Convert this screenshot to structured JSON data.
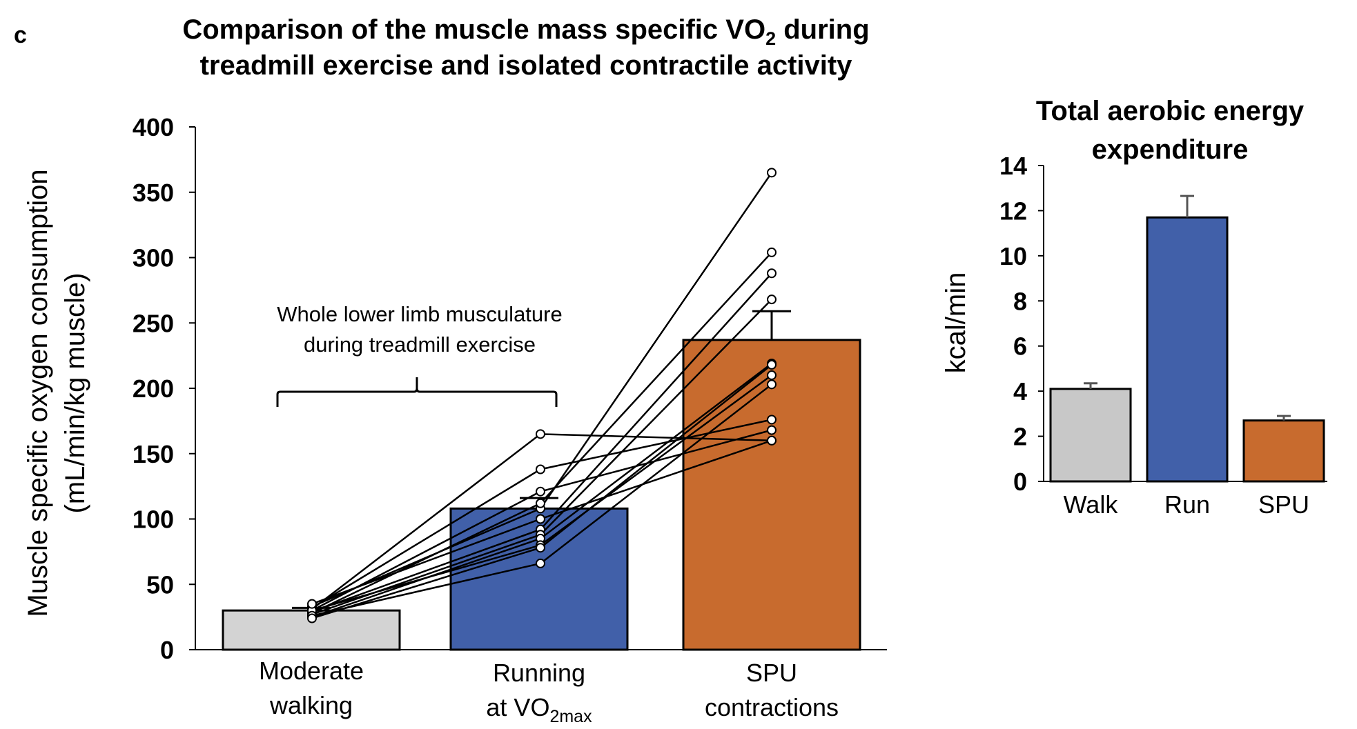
{
  "panel_label": "c",
  "chart_data": [
    {
      "type": "bar",
      "title_line1": "Comparison of the muscle mass specific VO",
      "title_sub": "2",
      "title_line1_tail": " during",
      "title_line2": "treadmill exercise and isolated contractile activity",
      "ylabel_line1": "Muscle specific oxygen consumption",
      "ylabel_line2": "(mL/min/kg muscle)",
      "ylim": [
        0,
        400
      ],
      "yticks": [
        0,
        50,
        100,
        150,
        200,
        250,
        300,
        350,
        400
      ],
      "categories": [
        {
          "line1": "Moderate",
          "line2": "walking",
          "line2_sub": ""
        },
        {
          "line1": "Running",
          "line2": "at VO",
          "line2_sub": "2max"
        },
        {
          "line1": "SPU",
          "line2": "contractions",
          "line2_sub": ""
        }
      ],
      "values": [
        30,
        108,
        237
      ],
      "errors": [
        2,
        8,
        22
      ],
      "colors": [
        "#d3d3d3",
        "#4160a9",
        "#c86b2e"
      ],
      "annotation_line1": "Whole lower limb musculature",
      "annotation_line2": "during treadmill exercise",
      "individual_subjects": [
        [
          33,
          108,
          365
        ],
        [
          31,
          165,
          160
        ],
        [
          32,
          138,
          176
        ],
        [
          30,
          121,
          168
        ],
        [
          28,
          112,
          304
        ],
        [
          29,
          92,
          288
        ],
        [
          27,
          88,
          268
        ],
        [
          25,
          85,
          219
        ],
        [
          30,
          80,
          210
        ],
        [
          26,
          66,
          203
        ],
        [
          35,
          100,
          160
        ],
        [
          24,
          78,
          218
        ]
      ]
    },
    {
      "type": "bar",
      "title_line1": "Total aerobic energy",
      "title_line2": "expenditure",
      "ylabel": "kcal/min",
      "ylim": [
        0,
        14
      ],
      "yticks": [
        0,
        2,
        4,
        6,
        8,
        10,
        12,
        14
      ],
      "categories": [
        "Walk",
        "Run",
        "SPU"
      ],
      "values": [
        4.1,
        11.7,
        2.7
      ],
      "errors": [
        0.25,
        0.95,
        0.2
      ],
      "colors": [
        "#c8c8c8",
        "#4160a9",
        "#c86b2e"
      ]
    }
  ]
}
